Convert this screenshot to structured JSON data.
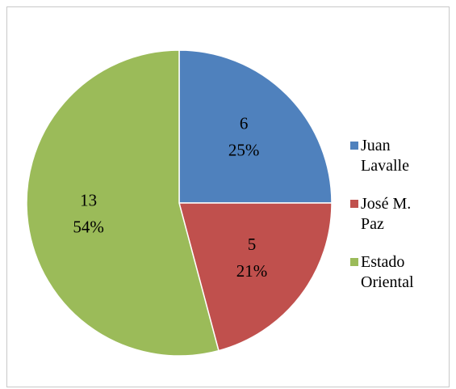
{
  "chart_data": {
    "type": "pie",
    "categories": [
      "Juan Lavalle",
      "José M. Paz",
      "Estado Oriental"
    ],
    "values": [
      6,
      5,
      13
    ],
    "percent_labels": [
      "25%",
      "21%",
      "54%"
    ],
    "colors": [
      "#4f81bd",
      "#c0504d",
      "#9bbb59"
    ],
    "legend": "right"
  }
}
